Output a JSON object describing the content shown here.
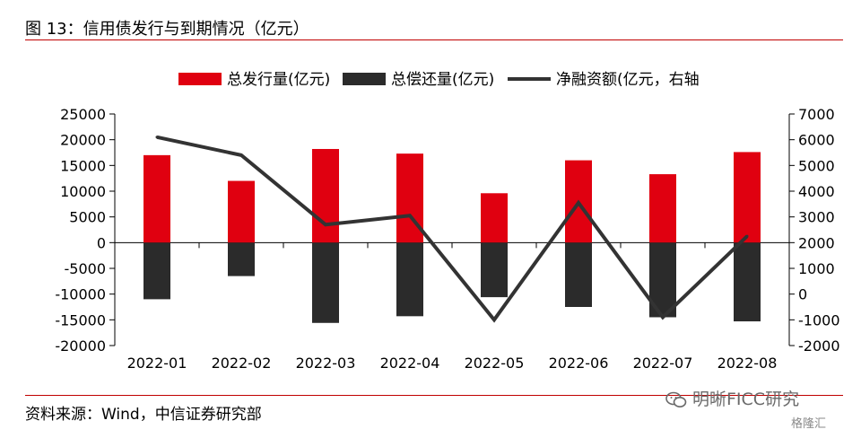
{
  "header": {
    "title": "图 13：信用债发行与到期情况（亿元）"
  },
  "footer": {
    "source": "资料来源：Wind，中信证券研究部"
  },
  "watermark": {
    "text1": "明晰FICC研究",
    "text2": "格隆汇"
  },
  "chart_data": {
    "type": "bar",
    "categories": [
      "2022-01",
      "2022-02",
      "2022-03",
      "2022-04",
      "2022-05",
      "2022-06",
      "2022-07",
      "2022-08"
    ],
    "series": [
      {
        "name": "总发行量(亿元)",
        "type": "bar",
        "axis": "left",
        "color": "#e00010",
        "values": [
          17000,
          12000,
          18200,
          17300,
          9600,
          16000,
          13300,
          17600
        ]
      },
      {
        "name": "总偿还量(亿元)",
        "type": "bar",
        "axis": "left",
        "color": "#2b2b2b",
        "values": [
          -11000,
          -6500,
          -15600,
          -14300,
          -10600,
          -12500,
          -14500,
          -15300
        ]
      },
      {
        "name": "净融资额(亿元，右轴",
        "type": "line",
        "axis": "right",
        "color": "#333333",
        "values": [
          6100,
          5400,
          2700,
          3050,
          -1000,
          3550,
          -900,
          2250
        ]
      }
    ],
    "y_left": {
      "min": -20000,
      "max": 25000,
      "ticks": [
        "25000",
        "20000",
        "15000",
        "10000",
        "5000",
        "0",
        "-5000",
        "-10000",
        "-15000",
        "-20000"
      ]
    },
    "y_right": {
      "min": -2000,
      "max": 7000,
      "ticks": [
        "7000",
        "6000",
        "5000",
        "4000",
        "3000",
        "2000",
        "1000",
        "0",
        "-1000",
        "-2000"
      ]
    },
    "grid": false,
    "legend": "top"
  }
}
